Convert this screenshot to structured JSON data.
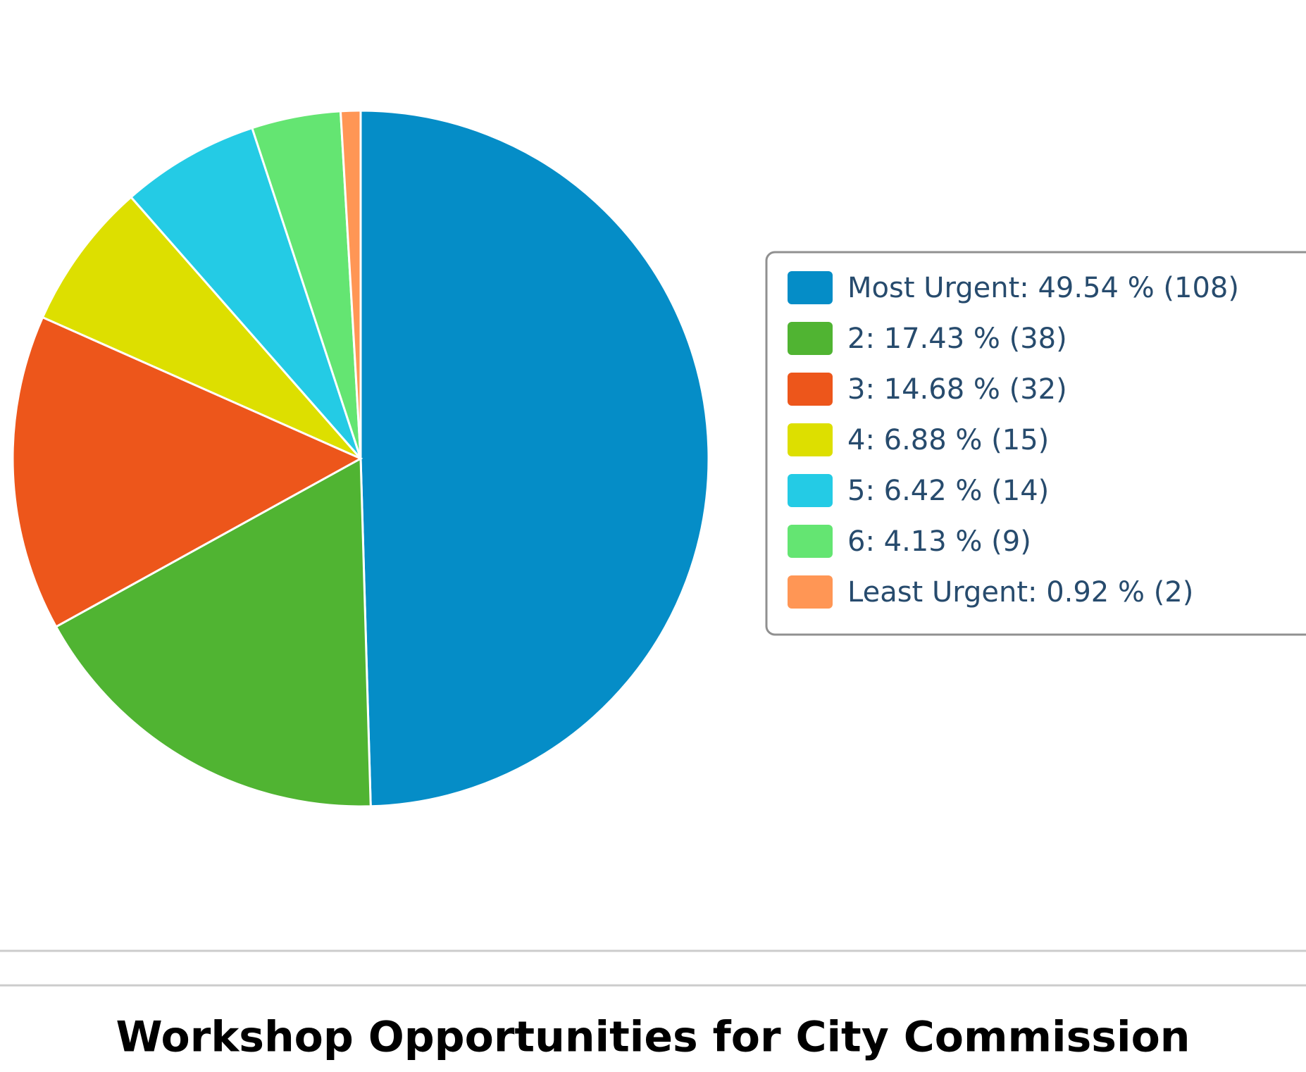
{
  "chart_data": {
    "type": "pie",
    "title": "Workshop Opportunities for City Commission",
    "categories": [
      "Most Urgent",
      "2",
      "3",
      "4",
      "5",
      "6",
      "Least Urgent"
    ],
    "values": [
      49.54,
      17.43,
      14.68,
      6.88,
      6.42,
      4.13,
      0.92
    ],
    "counts": [
      108,
      38,
      32,
      15,
      14,
      9,
      2
    ],
    "legend_labels": [
      "Most Urgent: 49.54 % (108)",
      "2: 17.43 % (38)",
      "3: 14.68 % (32)",
      "4: 6.88 % (15)",
      "5: 6.42 % (14)",
      "6: 4.13 % (9)",
      "Least Urgent: 0.92 % (2)"
    ],
    "colors": [
      "#058dc7",
      "#50b432",
      "#ed561b",
      "#dddf00",
      "#24cbe5",
      "#64e572",
      "#ff9655"
    ],
    "legend": "right"
  }
}
